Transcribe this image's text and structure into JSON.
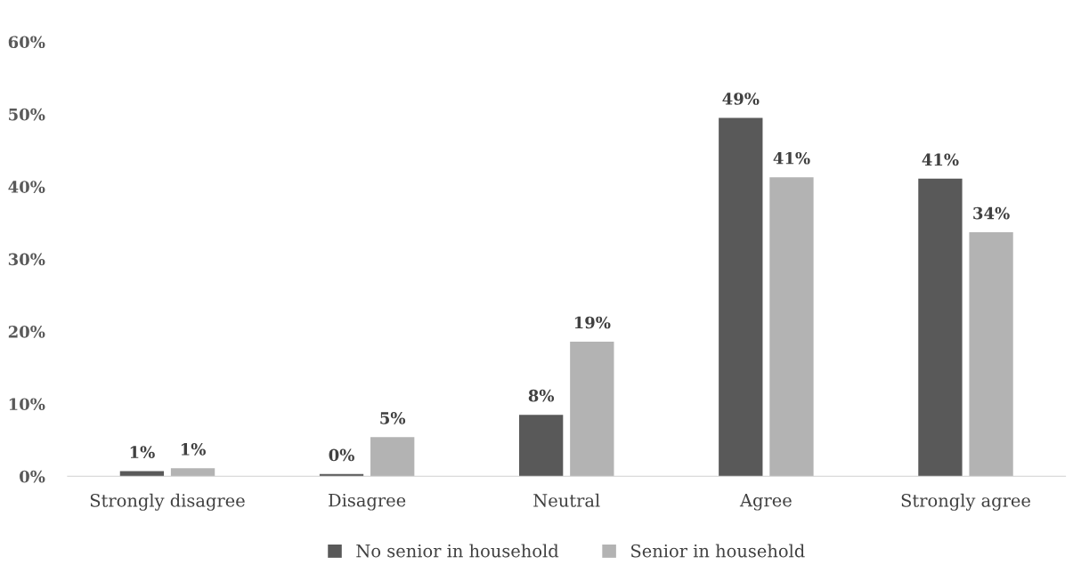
{
  "chart_data": {
    "type": "bar",
    "categories": [
      "Strongly disagree",
      "Disagree",
      "Neutral",
      "Agree",
      "Strongly agree"
    ],
    "series": [
      {
        "name": "No senior in household",
        "color": "#595959",
        "values": [
          0.7,
          0.3,
          8.5,
          49.5,
          41.1
        ],
        "value_labels": [
          "1%",
          "0%",
          "8%",
          "49%",
          "41%"
        ]
      },
      {
        "name": "Senior in household",
        "color": "#b3b3b3",
        "values": [
          1.1,
          5.4,
          18.6,
          41.3,
          33.7
        ],
        "value_labels": [
          "1%",
          "5%",
          "19%",
          "41%",
          "34%"
        ]
      }
    ],
    "ylim": [
      0,
      60
    ],
    "yticks": [
      {
        "value": 0,
        "label": "0%"
      },
      {
        "value": 10,
        "label": "10%"
      },
      {
        "value": 20,
        "label": "20%"
      },
      {
        "value": 30,
        "label": "30%"
      },
      {
        "value": 40,
        "label": "40%"
      },
      {
        "value": 50,
        "label": "50%"
      },
      {
        "value": 60,
        "label": "60%"
      }
    ],
    "grid": false,
    "legend": "bottom"
  }
}
